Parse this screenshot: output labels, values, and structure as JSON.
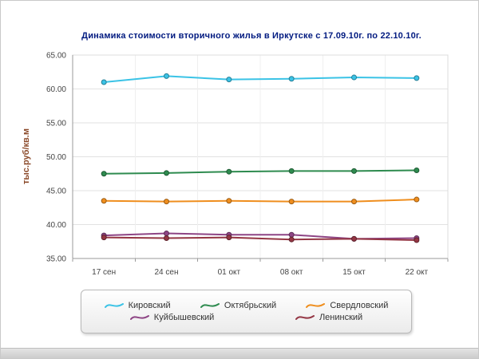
{
  "title": "Динамика стоимости вторичного жилья в Иркутске с 17.09.10г. по 22.10.10г.",
  "colors": {
    "title_text": "#001a80",
    "y_axis_title_text": "#8b4a2a",
    "grid_line": "#e2e2e2",
    "axis_line": "#9a9a9a"
  },
  "chart_data": {
    "type": "line",
    "title": "Динамика стоимости вторичного жилья в Иркутске с 17.09.10г. по 22.10.10г.",
    "xlabel": "",
    "ylabel": "тыс.руб/кв.м",
    "x": [
      "17 сен",
      "24 сен",
      "01 окт",
      "08 окт",
      "15 окт",
      "22 окт"
    ],
    "ylim": [
      35,
      65
    ],
    "ytick_step": 5,
    "ytick_labels": [
      "35.00",
      "40.00",
      "45.00",
      "50.00",
      "55.00",
      "60.00",
      "65.00"
    ],
    "grid": true,
    "legend_position": "bottom",
    "series": [
      {
        "name": "Кировский",
        "color": "#3bc3e6",
        "values": [
          61.0,
          61.9,
          61.4,
          61.5,
          61.7,
          61.6
        ]
      },
      {
        "name": "Октябрьский",
        "color": "#2e8b4f",
        "values": [
          47.5,
          47.6,
          47.8,
          47.9,
          47.9,
          48.0
        ]
      },
      {
        "name": "Свердловский",
        "color": "#ef8e1e",
        "values": [
          43.5,
          43.4,
          43.5,
          43.4,
          43.4,
          43.7
        ]
      },
      {
        "name": "Куйбышевский",
        "color": "#8e4585",
        "values": [
          38.4,
          38.7,
          38.5,
          38.5,
          37.9,
          38.0
        ]
      },
      {
        "name": "Ленинский",
        "color": "#943644",
        "values": [
          38.1,
          38.0,
          38.1,
          37.8,
          37.9,
          37.7
        ]
      }
    ]
  }
}
